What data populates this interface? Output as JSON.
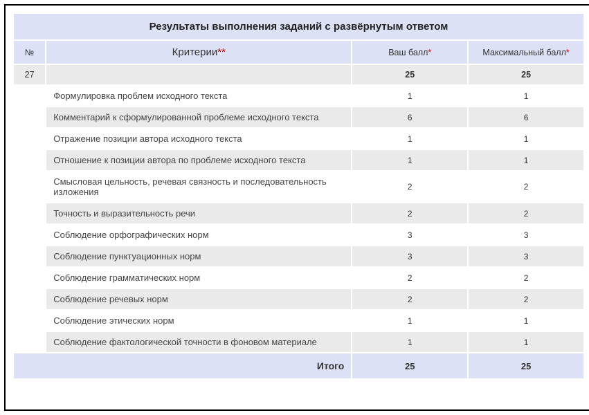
{
  "table": {
    "title": "Результаты выполнения заданий с развёрнутым ответом",
    "headers": {
      "number": "№",
      "criteria": "Критерии",
      "criteria_ast": "**",
      "your_score": "Ваш балл",
      "your_score_ast": "*",
      "max_score": "Максимальный балл",
      "max_score_ast": "*"
    },
    "task": {
      "number": "27",
      "your": "25",
      "max": "25"
    },
    "criteria_rows": [
      {
        "text": "Формулировка проблем исходного текста",
        "your": "1",
        "max": "1"
      },
      {
        "text": "Комментарий к сформулированной проблеме исходного текста",
        "your": "6",
        "max": "6"
      },
      {
        "text": "Отражение позиции автора исходного текста",
        "your": "1",
        "max": "1"
      },
      {
        "text": "Отношение к позиции автора по проблеме исходного текста",
        "your": "1",
        "max": "1"
      },
      {
        "text": "Смысловая цельность, речевая связность и последовательность изложения",
        "your": "2",
        "max": "2"
      },
      {
        "text": "Точность и выразительность речи",
        "your": "2",
        "max": "2"
      },
      {
        "text": "Соблюдение орфографических норм",
        "your": "3",
        "max": "3"
      },
      {
        "text": "Соблюдение пунктуационных норм",
        "your": "3",
        "max": "3"
      },
      {
        "text": "Соблюдение грамматических норм",
        "your": "2",
        "max": "2"
      },
      {
        "text": "Соблюдение речевых норм",
        "your": "2",
        "max": "2"
      },
      {
        "text": "Соблюдение этических норм",
        "your": "1",
        "max": "1"
      },
      {
        "text": "Соблюдение фактологической точности в фоновом материале",
        "your": "1",
        "max": "1"
      }
    ],
    "total": {
      "label": "Итого",
      "your": "25",
      "max": "25"
    },
    "colors": {
      "header_bg": "#dce1f5",
      "row_alt_bg": "#eaeaea",
      "row_bg": "#ffffff",
      "asterisk": "#d40000",
      "text": "#333333",
      "border": "#000000"
    }
  }
}
